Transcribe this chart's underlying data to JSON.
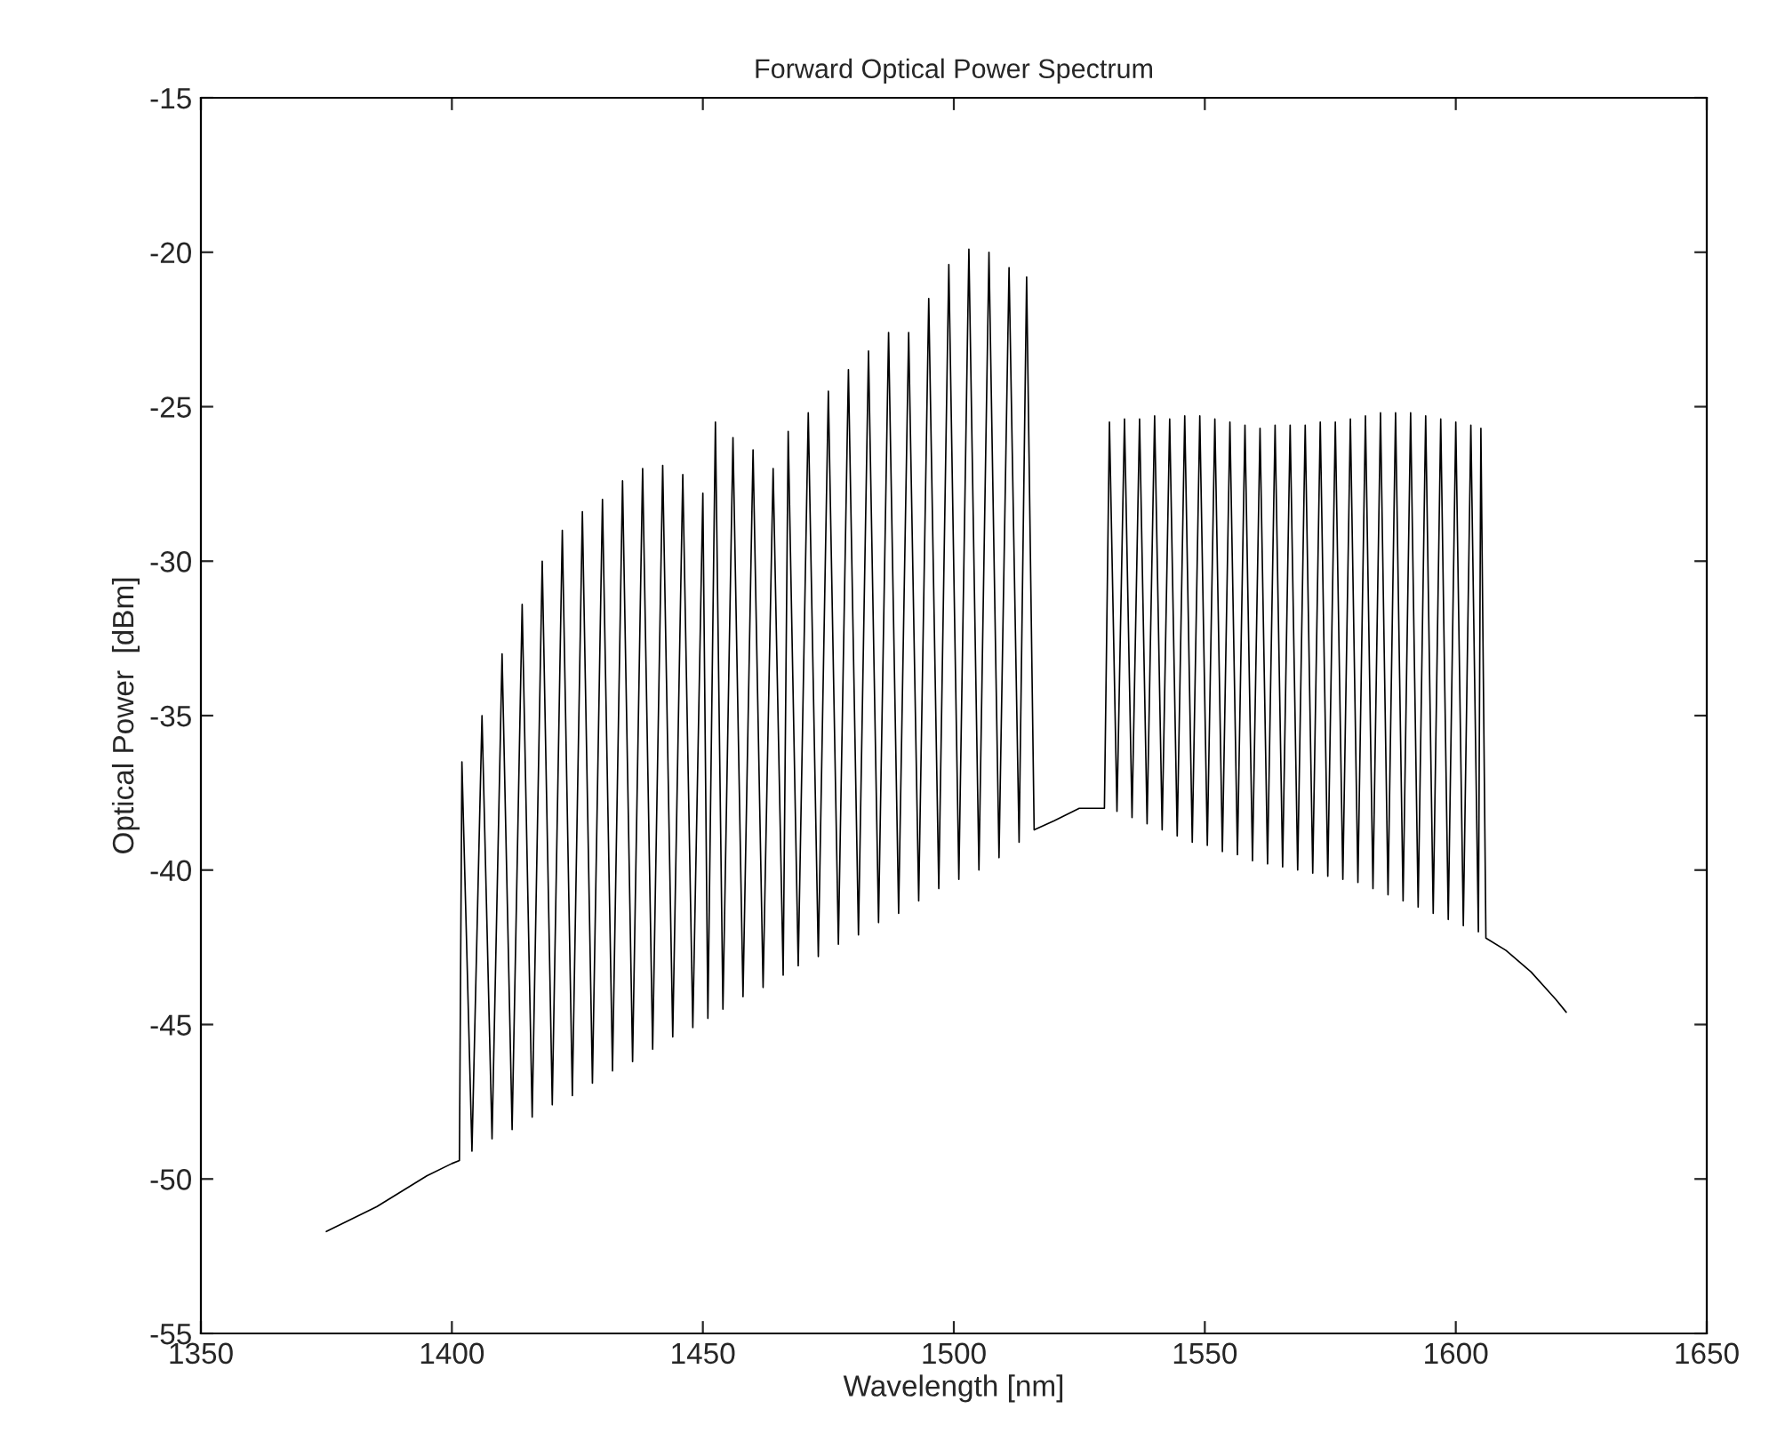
{
  "chart_data": {
    "type": "line",
    "title": "Forward Optical Power Spectrum",
    "xlabel": "Wavelength [nm]",
    "ylabel": "Optical Power  [dBm]",
    "xlim": [
      1350,
      1650
    ],
    "xticks": [
      1350,
      1400,
      1450,
      1500,
      1550,
      1600,
      1650
    ],
    "ylim": [
      -55,
      -15
    ],
    "yticks": [
      -55,
      -50,
      -45,
      -40,
      -35,
      -30,
      -25,
      -20,
      -15
    ],
    "grid": false,
    "marker": "none",
    "line_style": "solid",
    "series": [
      {
        "color": "#000000",
        "x": [
          1375,
          1385,
          1395,
          1400,
          1401.5,
          1402,
          1404,
          1406,
          1408,
          1410,
          1412,
          1414,
          1416,
          1418,
          1420,
          1422,
          1424,
          1426,
          1428,
          1430,
          1432,
          1434,
          1436,
          1438,
          1440,
          1442,
          1444,
          1446,
          1448,
          1450,
          1451,
          1452.5,
          1454,
          1456,
          1458,
          1460,
          1462,
          1464,
          1466,
          1467,
          1469,
          1471,
          1473,
          1475,
          1477,
          1479,
          1481,
          1483,
          1485,
          1487,
          1489,
          1491,
          1493,
          1495,
          1497,
          1499,
          1501,
          1503,
          1505,
          1507,
          1509,
          1511,
          1513,
          1514.5,
          1516,
          1520,
          1525,
          1530,
          1531,
          1532.5,
          1534,
          1535.5,
          1537,
          1538.5,
          1540,
          1541.5,
          1543,
          1544.5,
          1546,
          1547.5,
          1549,
          1550.5,
          1552,
          1553.5,
          1555,
          1556.5,
          1558,
          1559.5,
          1561,
          1562.5,
          1564,
          1565.5,
          1567,
          1568.5,
          1570,
          1571.5,
          1573,
          1574.5,
          1576,
          1577.5,
          1579,
          1580.5,
          1582,
          1583.5,
          1585,
          1586.5,
          1588,
          1589.5,
          1591,
          1592.5,
          1594,
          1595.5,
          1597,
          1598.5,
          1600,
          1601.5,
          1603,
          1604.5,
          1605,
          1606,
          1610,
          1615,
          1620,
          1622
        ],
        "values": [
          -51.7,
          -50.9,
          -49.9,
          -49.5,
          -49.4,
          -36.5,
          -49.1,
          -35.0,
          -48.7,
          -33.0,
          -48.4,
          -31.4,
          -48.0,
          -30.0,
          -47.6,
          -29.0,
          -47.3,
          -28.4,
          -46.9,
          -28.0,
          -46.5,
          -27.4,
          -46.2,
          -27.0,
          -45.8,
          -26.9,
          -45.4,
          -27.2,
          -45.1,
          -27.8,
          -44.8,
          -25.5,
          -44.5,
          -26.0,
          -44.1,
          -26.4,
          -43.8,
          -27.0,
          -43.4,
          -25.8,
          -43.1,
          -25.2,
          -42.8,
          -24.5,
          -42.4,
          -23.8,
          -42.1,
          -23.2,
          -41.7,
          -22.6,
          -41.4,
          -22.6,
          -41.0,
          -21.5,
          -40.6,
          -20.4,
          -40.3,
          -19.9,
          -40.0,
          -20.0,
          -39.6,
          -20.5,
          -39.1,
          -20.8,
          -38.7,
          -38.4,
          -38.0,
          -38.0,
          -25.5,
          -38.1,
          -25.4,
          -38.3,
          -25.4,
          -38.5,
          -25.3,
          -38.7,
          -25.4,
          -38.9,
          -25.3,
          -39.1,
          -25.3,
          -39.2,
          -25.4,
          -39.4,
          -25.5,
          -39.5,
          -25.6,
          -39.7,
          -25.7,
          -39.8,
          -25.6,
          -39.9,
          -25.6,
          -40.0,
          -25.6,
          -40.1,
          -25.5,
          -40.2,
          -25.5,
          -40.3,
          -25.4,
          -40.4,
          -25.3,
          -40.6,
          -25.2,
          -40.8,
          -25.2,
          -41.0,
          -25.2,
          -41.2,
          -25.3,
          -41.4,
          -25.4,
          -41.6,
          -25.5,
          -41.8,
          -25.6,
          -42.0,
          -25.7,
          -42.2,
          -42.6,
          -43.3,
          -44.2,
          -44.6
        ]
      }
    ]
  }
}
